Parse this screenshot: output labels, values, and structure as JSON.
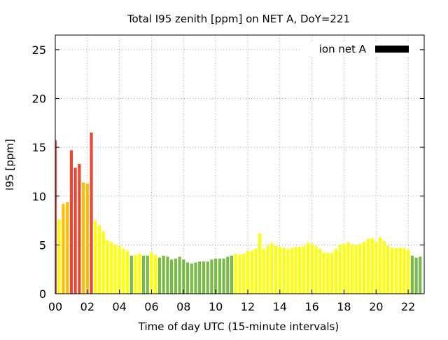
{
  "chart_data": {
    "type": "bar",
    "title": "Total I95 zenith [ppm] on NET A, DoY=221",
    "xlabel": "Time of day UTC (15-minute intervals)",
    "ylabel": "I95 [ppm]",
    "xlim": [
      0,
      23
    ],
    "ylim": [
      0,
      26.5
    ],
    "x_ticks": [
      0,
      2,
      4,
      6,
      8,
      10,
      12,
      14,
      16,
      18,
      20,
      22
    ],
    "x_tick_labels": [
      "00",
      "02",
      "04",
      "06",
      "08",
      "10",
      "12",
      "14",
      "16",
      "18",
      "20",
      "22"
    ],
    "y_ticks": [
      0,
      5,
      10,
      15,
      20,
      25
    ],
    "y_tick_labels": [
      "0",
      "5",
      "10",
      "15",
      "20",
      "25"
    ],
    "grid": true,
    "legend": {
      "label": "ion net A",
      "position": "top-right",
      "color": "#000000"
    },
    "interval_hours": 0.25,
    "colors": {
      "green": "#77bb44",
      "yellow": "#ffff00",
      "orange": "#ffbb00",
      "red": "#ee4433"
    },
    "values": [
      15.7,
      7.6,
      9.2,
      9.4,
      14.7,
      12.9,
      13.3,
      11.4,
      11.3,
      16.5,
      7.5,
      7.0,
      6.4,
      5.5,
      5.3,
      5.0,
      4.9,
      4.6,
      4.4,
      3.9,
      4.0,
      4.1,
      3.9,
      3.9,
      4.2,
      4.0,
      3.7,
      3.9,
      3.8,
      3.5,
      3.6,
      3.8,
      3.5,
      3.2,
      3.1,
      3.2,
      3.3,
      3.3,
      3.3,
      3.5,
      3.6,
      3.6,
      3.6,
      3.8,
      3.9,
      4.1,
      4.0,
      4.1,
      4.4,
      4.4,
      4.6,
      6.2,
      4.6,
      4.9,
      5.2,
      4.9,
      4.8,
      4.7,
      4.6,
      4.7,
      4.8,
      4.8,
      4.9,
      5.2,
      5.1,
      4.9,
      4.6,
      4.2,
      4.2,
      4.2,
      4.6,
      5.0,
      5.1,
      5.3,
      5.0,
      5.0,
      5.1,
      5.3,
      5.6,
      5.7,
      5.3,
      5.8,
      5.4,
      4.9,
      4.7,
      4.7,
      4.7,
      4.7,
      4.5,
      3.9,
      3.7,
      3.8
    ],
    "bar_colors": [
      "red",
      "yellow",
      "orange",
      "orange",
      "red",
      "red",
      "red",
      "orange",
      "orange",
      "red",
      "yellow",
      "yellow",
      "yellow",
      "yellow",
      "yellow",
      "yellow",
      "yellow",
      "yellow",
      "yellow",
      "green",
      "yellow",
      "yellow",
      "green",
      "green",
      "yellow",
      "yellow",
      "green",
      "green",
      "green",
      "green",
      "green",
      "green",
      "green",
      "green",
      "green",
      "green",
      "green",
      "green",
      "green",
      "green",
      "green",
      "green",
      "green",
      "green",
      "green",
      "yellow",
      "yellow",
      "yellow",
      "yellow",
      "yellow",
      "yellow",
      "yellow",
      "yellow",
      "yellow",
      "yellow",
      "yellow",
      "yellow",
      "yellow",
      "yellow",
      "yellow",
      "yellow",
      "yellow",
      "yellow",
      "yellow",
      "yellow",
      "yellow",
      "yellow",
      "yellow",
      "yellow",
      "yellow",
      "yellow",
      "yellow",
      "yellow",
      "yellow",
      "yellow",
      "yellow",
      "yellow",
      "yellow",
      "yellow",
      "yellow",
      "yellow",
      "yellow",
      "yellow",
      "yellow",
      "yellow",
      "yellow",
      "yellow",
      "yellow",
      "yellow",
      "green",
      "green",
      "green"
    ]
  }
}
